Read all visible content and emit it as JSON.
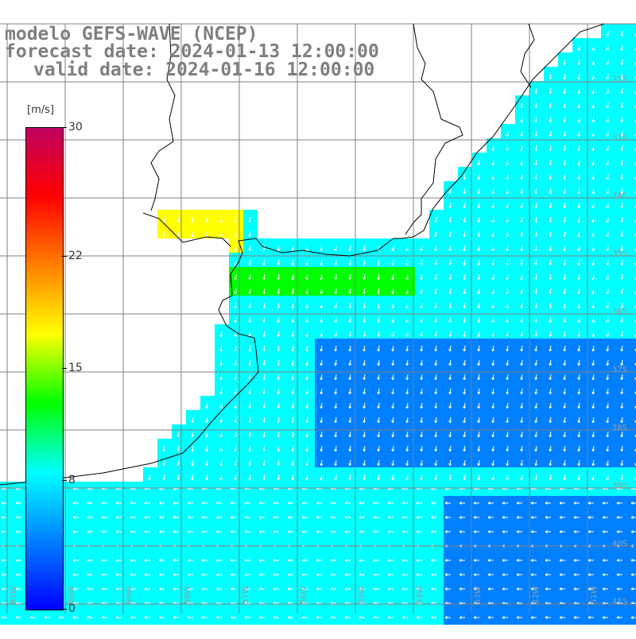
{
  "title": {
    "line1": "modelo GEFS-WAVE (NCEP)",
    "line2": "forecast date: 2024-01-13 12:00:00",
    "line3": "valid date: 2024-01-16 12:00:00"
  },
  "colorbar": {
    "unit": "[m/s]",
    "ticks": [
      {
        "label": "30",
        "value": 30
      },
      {
        "label": "22",
        "value": 22
      },
      {
        "label": "15",
        "value": 15
      },
      {
        "label": "8",
        "value": 8
      },
      {
        "label": "0",
        "value": 0
      }
    ],
    "colors": [
      "#0000ff",
      "#0080ff",
      "#00ffff",
      "#00ff00",
      "#ffff00",
      "#ff8000",
      "#ff0000",
      "#c00060"
    ]
  },
  "map": {
    "variable": "wind speed and direction",
    "lat_labels": [
      "32S",
      "33S",
      "34S",
      "35S",
      "36S",
      "37S",
      "38S",
      "39S",
      "40S",
      "41S"
    ],
    "lon_labels": [
      "61W",
      "60W",
      "59W",
      "58W",
      "57W",
      "56W",
      "55W",
      "54W",
      "53W",
      "52W",
      "51W"
    ],
    "land_color": "#ffffff",
    "grid_color": "#808080",
    "arrow_color": "#ffffff"
  }
}
